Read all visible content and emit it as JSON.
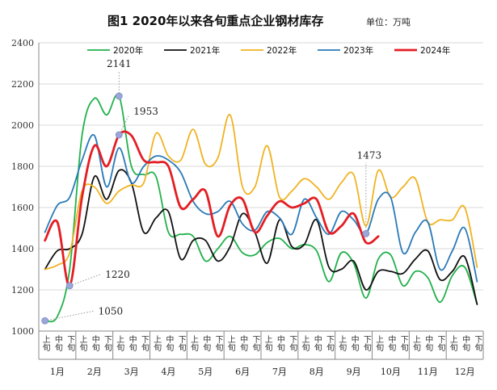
{
  "chart_data": {
    "type": "line",
    "title": "图1  2020年以来各旬重点企业钢材库存",
    "unit": "单位：万吨",
    "ylim": [
      1000,
      2400
    ],
    "yticks": [
      1000,
      1200,
      1400,
      1600,
      1800,
      2000,
      2200,
      2400
    ],
    "grid": true,
    "legend_position": "top",
    "months": [
      "1月",
      "2月",
      "3月",
      "4月",
      "5月",
      "6月",
      "7月",
      "8月",
      "9月",
      "10月",
      "11月",
      "12月"
    ],
    "xticks": [
      "上旬",
      "中旬",
      "下旬",
      "上旬",
      "中旬",
      "下旬",
      "上旬",
      "中旬",
      "下旬",
      "上旬",
      "中旬",
      "下旬",
      "上旬",
      "中旬",
      "下旬",
      "上旬",
      "中旬",
      "下旬",
      "上旬",
      "中旬",
      "下旬",
      "上旬",
      "中旬",
      "下旬",
      "上旬",
      "中旬",
      "下旬",
      "上旬",
      "中旬",
      "下旬",
      "上旬",
      "中旬",
      "下旬",
      "上旬",
      "中旬",
      "下旬"
    ],
    "series": [
      {
        "name": "2020年",
        "color": "#22b14c",
        "values": [
          1050,
          1070,
          1300,
          1950,
          2130,
          2050,
          2141,
          1800,
          1760,
          1750,
          1480,
          1470,
          1460,
          1340,
          1400,
          1460,
          1380,
          1370,
          1430,
          1450,
          1400,
          1420,
          1390,
          1240,
          1380,
          1330,
          1160,
          1350,
          1370,
          1220,
          1290,
          1260,
          1140,
          1270,
          1310,
          1130
        ]
      },
      {
        "name": "2021年",
        "color": "#111111",
        "values": [
          1300,
          1390,
          1400,
          1470,
          1750,
          1640,
          1780,
          1720,
          1480,
          1550,
          1580,
          1350,
          1440,
          1440,
          1340,
          1410,
          1570,
          1480,
          1330,
          1540,
          1410,
          1420,
          1540,
          1310,
          1300,
          1340,
          1200,
          1290,
          1290,
          1280,
          1350,
          1390,
          1250,
          1290,
          1360,
          1130
        ]
      },
      {
        "name": "2022年",
        "color": "#f0b323",
        "values": [
          1300,
          1320,
          1380,
          1680,
          1700,
          1620,
          1680,
          1710,
          1720,
          1960,
          1850,
          1830,
          1980,
          1810,
          1840,
          2050,
          1700,
          1700,
          1900,
          1650,
          1680,
          1740,
          1700,
          1640,
          1720,
          1760,
          1510,
          1780,
          1650,
          1700,
          1740,
          1530,
          1540,
          1540,
          1600,
          1310
        ]
      },
      {
        "name": "2023年",
        "color": "#2a7ab8",
        "values": [
          1480,
          1610,
          1650,
          1830,
          1950,
          1700,
          1890,
          1720,
          1800,
          1850,
          1830,
          1770,
          1630,
          1570,
          1580,
          1630,
          1520,
          1490,
          1580,
          1550,
          1470,
          1640,
          1550,
          1470,
          1580,
          1540,
          1473,
          1640,
          1650,
          1380,
          1480,
          1530,
          1300,
          1390,
          1500,
          1240
        ]
      },
      {
        "name": "2024年",
        "color": "#e31e24",
        "values": [
          1440,
          1530,
          1220,
          1650,
          1900,
          1800,
          1953,
          1950,
          1830,
          1820,
          1800,
          1600,
          1640,
          1680,
          1460,
          1610,
          1640,
          1480,
          1560,
          1630,
          1600,
          1620,
          1640,
          1480,
          1510,
          1570,
          1430,
          1460
        ]
      }
    ],
    "annotations": [
      {
        "text": "2141",
        "series": 0,
        "index": 6
      },
      {
        "text": "1953",
        "series": 4,
        "index": 6
      },
      {
        "text": "1220",
        "series": 4,
        "index": 2
      },
      {
        "text": "1050",
        "series": 0,
        "index": 0
      },
      {
        "text": "1473",
        "series": 3,
        "index": 26
      }
    ]
  }
}
